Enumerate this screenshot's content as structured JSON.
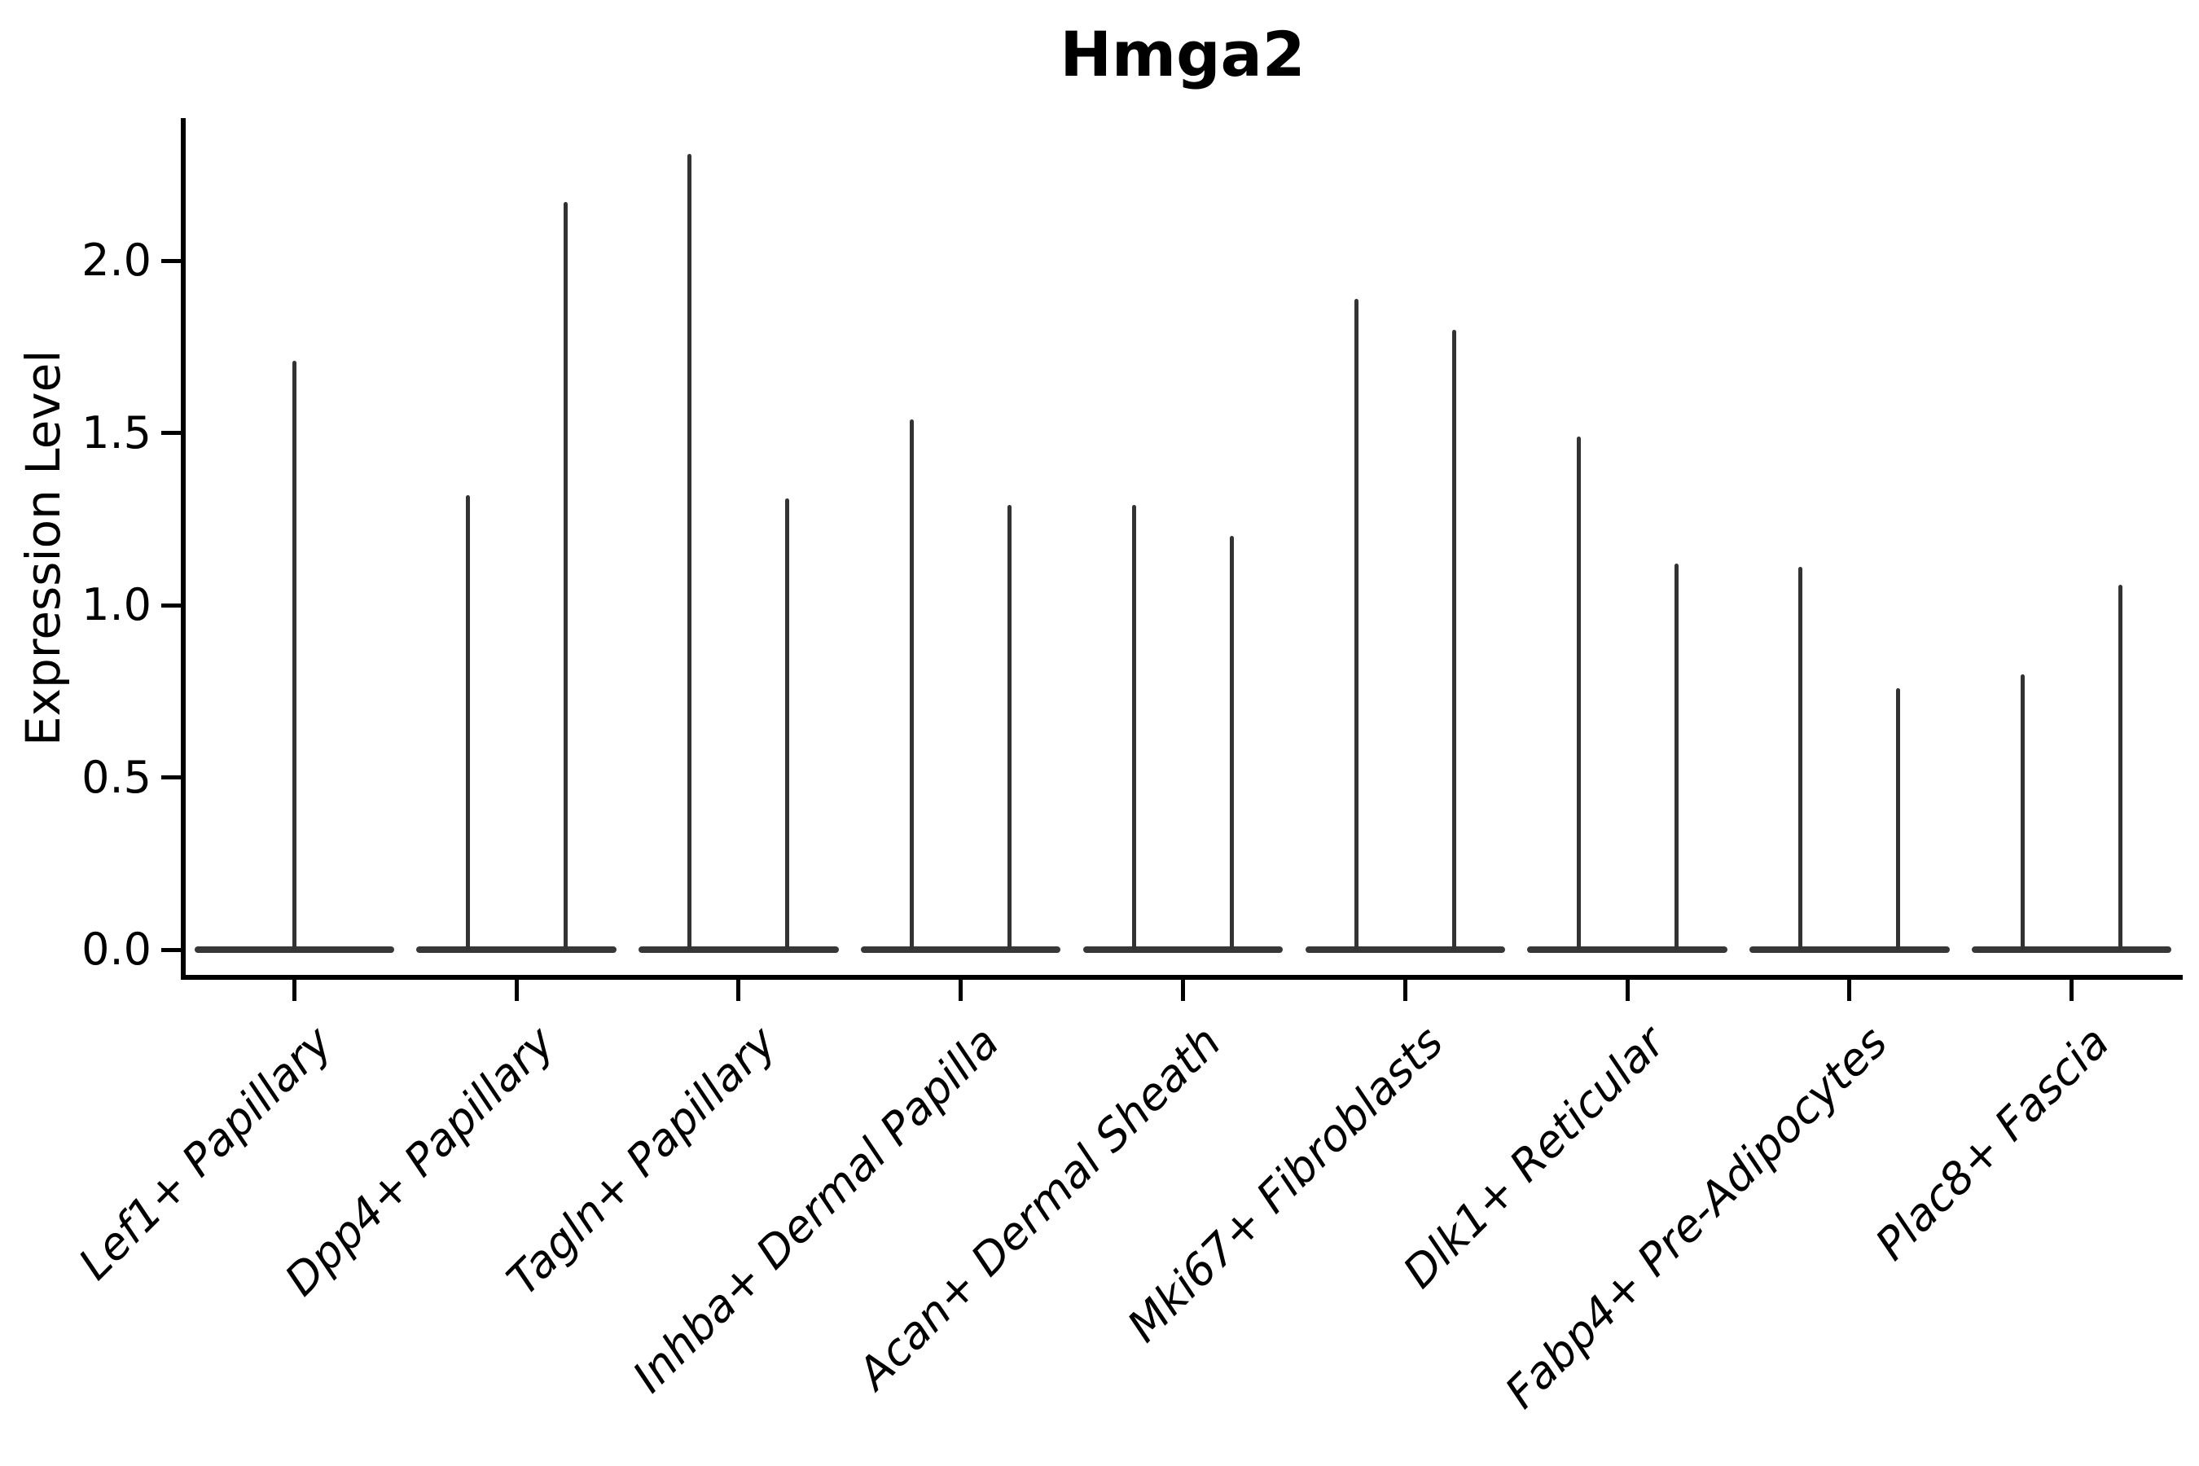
{
  "colors": {
    "violin": "#373737",
    "spike": "#333333",
    "axis": "#000000",
    "text": "#000000",
    "background": "#ffffff"
  },
  "chart_data": {
    "type": "violin",
    "title": "Hmga2",
    "xlabel": "",
    "ylabel": "Expression Level",
    "grid": false,
    "legend_position": "none",
    "ylim": [
      -0.08,
      2.41
    ],
    "ytick_labels": [
      "0.0",
      "0.5",
      "1.0",
      "1.5",
      "2.0"
    ],
    "ytick_values": [
      0.0,
      0.5,
      1.0,
      1.5,
      2.0
    ],
    "categories": [
      "Lef1+ Papillary",
      "Dpp4+ Papillary",
      "Tagln+ Papillary",
      "Inhba+ Dermal Papilla",
      "Acan+ Dermal Sheath",
      "Mki67+ Fibroblasts",
      "Dlk1+ Reticular",
      "Fabp4+ Pre-Adipocytes",
      "Plac8+ Fascia"
    ],
    "violin_style_note": "Each violin collapses to a flat bar at 0 with a thin vertical spike reaching the maximum expression value; categories 2-9 contain two side-by-side violins, category 1 contains one centered violin.",
    "violins_per_category": [
      [
        1.71
      ],
      [
        1.32,
        2.17
      ],
      [
        2.31,
        1.31
      ],
      [
        1.54,
        1.29
      ],
      [
        1.29,
        1.2
      ],
      [
        1.89,
        1.8
      ],
      [
        1.49,
        1.12
      ],
      [
        1.11,
        0.76
      ],
      [
        0.8,
        1.06
      ]
    ]
  }
}
